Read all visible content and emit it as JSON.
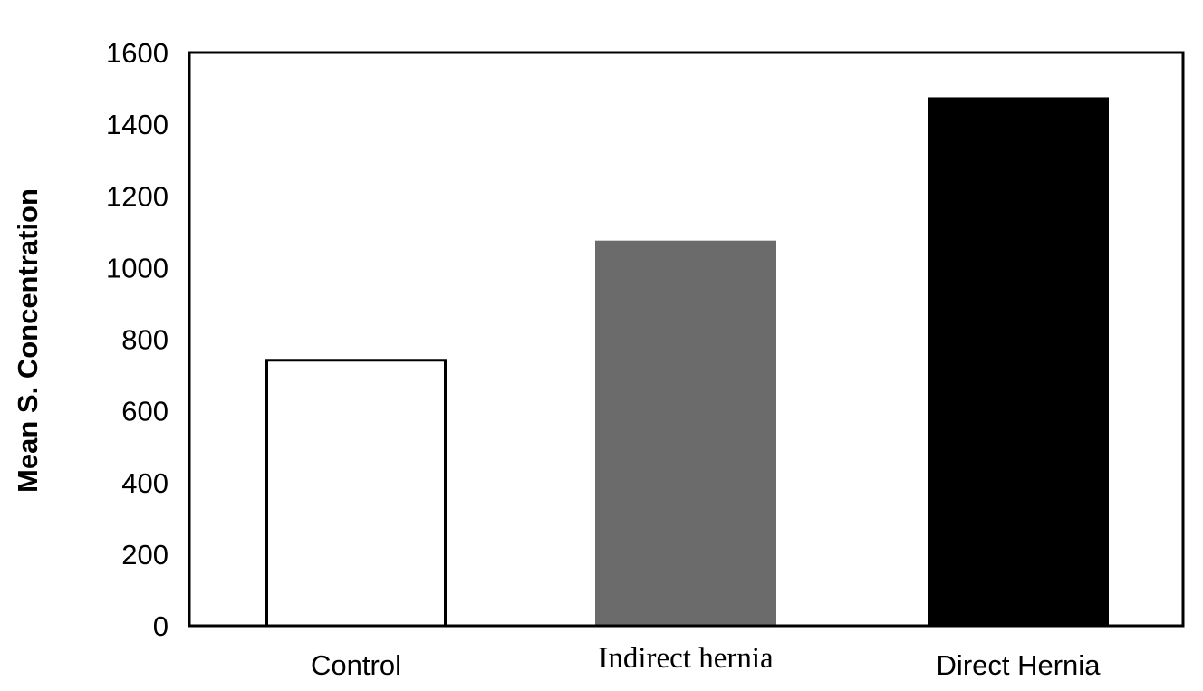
{
  "chart_data": {
    "type": "bar",
    "title": "",
    "xlabel": "",
    "ylabel": "Mean S. Concentration",
    "ylim": [
      0,
      1600
    ],
    "yticks": [
      "0",
      "200",
      "400",
      "600",
      "800",
      "1000",
      "1200",
      "1400",
      "1600"
    ],
    "grid": false,
    "legend": "none",
    "categories": [
      "Control",
      "Indirect hernia",
      "Direct Hernia"
    ],
    "values": [
      745,
      1075,
      1475
    ],
    "colors": [
      "#ffffff",
      "#6b6b6b",
      "#000000"
    ]
  }
}
